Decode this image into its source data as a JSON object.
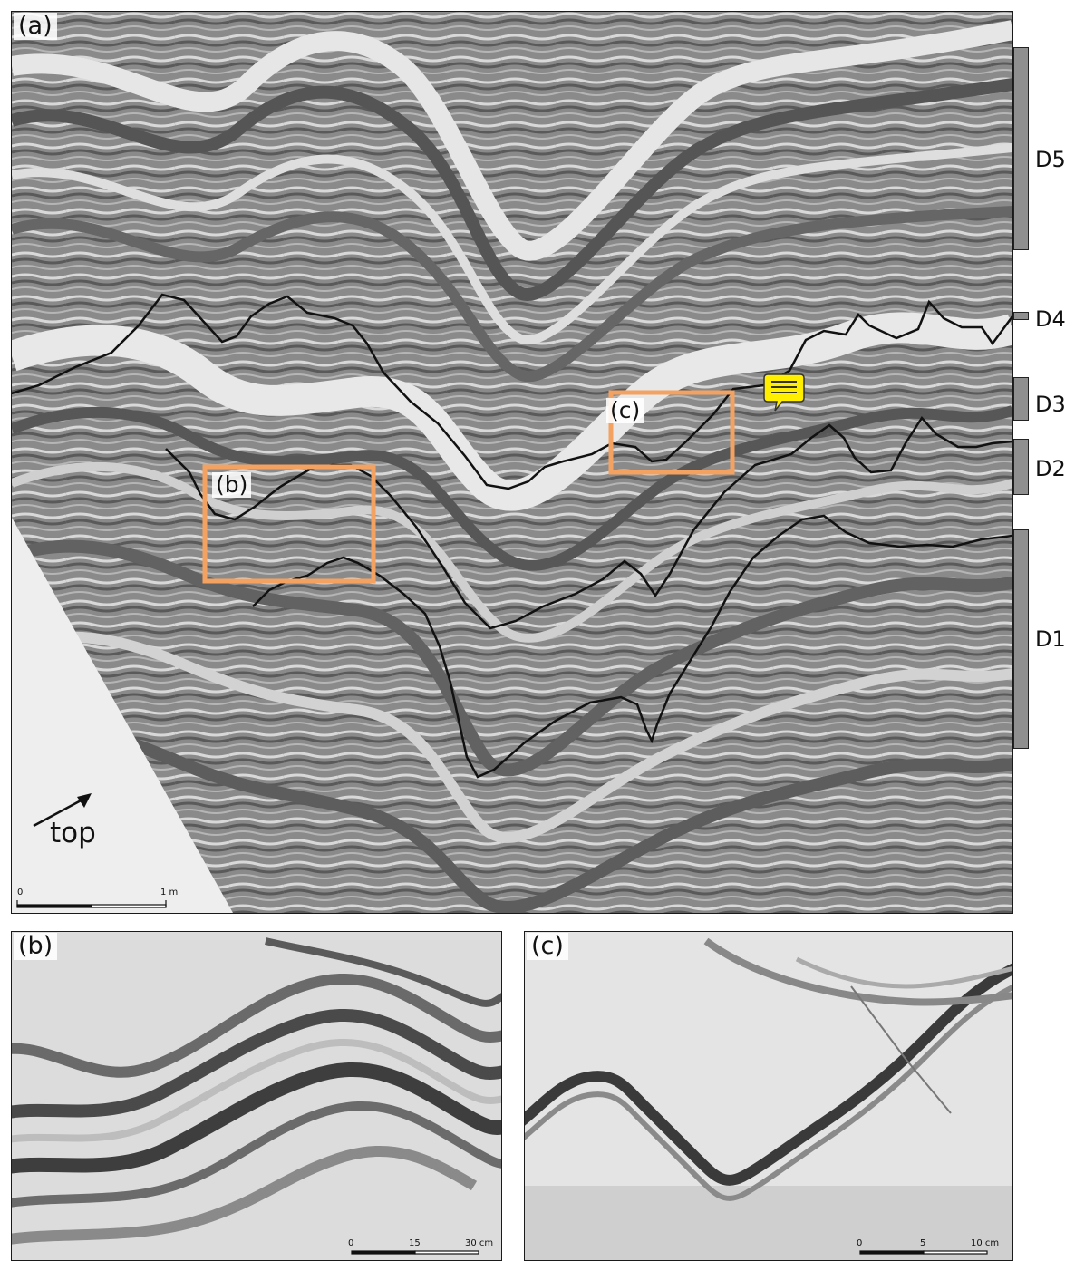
{
  "panels": {
    "a": {
      "label": "(a)",
      "orientation_label": "top",
      "scale": {
        "start": "0",
        "end": "1 m"
      },
      "inset_boxes": [
        {
          "label": "(b)"
        },
        {
          "label": "(c)"
        }
      ]
    },
    "b": {
      "label": "(b)",
      "scale": {
        "t0": "0",
        "t1": "15",
        "t2": "30 cm"
      }
    },
    "c": {
      "label": "(c)",
      "scale": {
        "t0": "0",
        "t1": "5",
        "t2": "10 cm"
      }
    }
  },
  "units": [
    "D5",
    "D4",
    "D3",
    "D2",
    "D1"
  ],
  "colors": {
    "inset_box": "#f4a261",
    "boundary_line": "#111111",
    "unit_bar": "#8f8f8f",
    "comment_icon": "#ffee00"
  },
  "icons": {
    "orientation": "arrow-icon",
    "comment": "comment-icon"
  }
}
